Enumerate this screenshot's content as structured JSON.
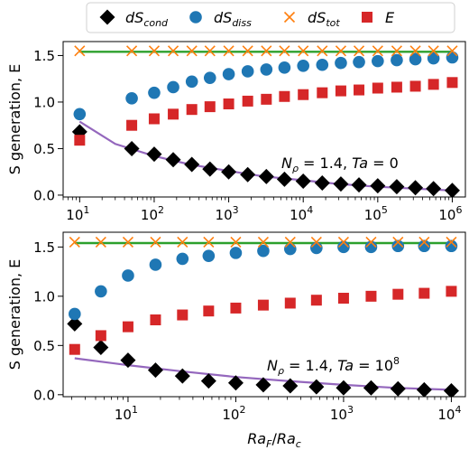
{
  "legend": {
    "entries": [
      {
        "id": "dScond",
        "base": "dS",
        "sub": "cond",
        "marker": "diamond",
        "color": "#000000"
      },
      {
        "id": "dSdiss",
        "base": "dS",
        "sub": "diss",
        "marker": "circle",
        "color": "#1f77b4"
      },
      {
        "id": "dStot",
        "base": "dS",
        "sub": "tot",
        "marker": "x",
        "color": "#ff7f0e"
      },
      {
        "id": "E",
        "base": "E",
        "sub": "",
        "marker": "square",
        "color": "#d62728"
      }
    ]
  },
  "colors": {
    "fit_line": "#9467bd",
    "total_line": "#2ca02c"
  },
  "xlabel": {
    "num": "Ra",
    "num_sub": "F",
    "den": "Ra",
    "den_sub": "c",
    "sep": "/"
  },
  "chart_data": [
    {
      "type": "scatter",
      "xscale": "log",
      "xlim": [
        6,
        1500000
      ],
      "ylim": [
        -0.02,
        1.65
      ],
      "xticks": [
        {
          "v": 10,
          "e": "1"
        },
        {
          "v": 100,
          "e": "2"
        },
        {
          "v": 1000,
          "e": "3"
        },
        {
          "v": 10000,
          "e": "4"
        },
        {
          "v": 100000,
          "e": "5"
        },
        {
          "v": 1000000,
          "e": "6"
        }
      ],
      "yticks": [
        0.0,
        0.5,
        1.0,
        1.5
      ],
      "ylabel": "S generation, E",
      "annotation": {
        "lhs": "N",
        "sub": "ρ",
        "text1": " = 1.4, ",
        "ta": "Ta",
        "text2": " = 0",
        "sup": ""
      },
      "x": [
        10,
        50,
        100,
        180,
        320,
        560,
        1000,
        1800,
        3200,
        5600,
        10000,
        18000,
        32000,
        56000,
        100000,
        180000,
        320000,
        560000,
        1000000
      ],
      "series": [
        {
          "id": "dScond",
          "values": [
            0.68,
            0.5,
            0.44,
            0.38,
            0.33,
            0.28,
            0.25,
            0.22,
            0.2,
            0.17,
            0.15,
            0.13,
            0.12,
            0.11,
            0.1,
            0.09,
            0.08,
            0.07,
            0.05
          ]
        },
        {
          "id": "dSdiss",
          "values": [
            0.87,
            1.04,
            1.1,
            1.16,
            1.22,
            1.26,
            1.3,
            1.33,
            1.35,
            1.37,
            1.39,
            1.4,
            1.42,
            1.43,
            1.44,
            1.45,
            1.46,
            1.47,
            1.48
          ]
        },
        {
          "id": "dStot",
          "values": [
            1.55,
            1.55,
            1.55,
            1.55,
            1.55,
            1.55,
            1.55,
            1.55,
            1.55,
            1.55,
            1.55,
            1.55,
            1.55,
            1.55,
            1.55,
            1.55,
            1.55,
            1.55,
            1.55
          ]
        },
        {
          "id": "E",
          "values": [
            0.59,
            0.75,
            0.82,
            0.87,
            0.92,
            0.95,
            0.98,
            1.01,
            1.03,
            1.06,
            1.08,
            1.1,
            1.12,
            1.13,
            1.15,
            1.16,
            1.17,
            1.19,
            1.21
          ]
        }
      ],
      "fit": {
        "x": [
          10,
          30,
          100,
          300,
          1000,
          3000,
          10000,
          30000,
          100000,
          300000,
          1000000
        ],
        "values": [
          0.79,
          0.55,
          0.42,
          0.33,
          0.26,
          0.2,
          0.16,
          0.12,
          0.09,
          0.07,
          0.05
        ]
      },
      "total_line": {
        "x": [
          10,
          1000000
        ],
        "values": [
          1.54,
          1.54
        ]
      }
    },
    {
      "type": "scatter",
      "xscale": "log",
      "xlim": [
        2.5,
        13500
      ],
      "ylim": [
        -0.02,
        1.65
      ],
      "xticks": [
        {
          "v": 10,
          "e": "1"
        },
        {
          "v": 100,
          "e": "2"
        },
        {
          "v": 1000,
          "e": "3"
        },
        {
          "v": 10000,
          "e": "4"
        }
      ],
      "yticks": [
        0.0,
        0.5,
        1.0,
        1.5
      ],
      "ylabel": "S generation, E",
      "annotation": {
        "lhs": "N",
        "sub": "ρ",
        "text1": " = 1.4, ",
        "ta": "Ta",
        "text2": " = 10",
        "sup": "8"
      },
      "x": [
        3.2,
        5.6,
        10,
        18,
        32,
        56,
        100,
        180,
        320,
        560,
        1000,
        1800,
        3200,
        5600,
        10000
      ],
      "series": [
        {
          "id": "dScond",
          "values": [
            0.72,
            0.48,
            0.35,
            0.25,
            0.19,
            0.14,
            0.12,
            0.1,
            0.09,
            0.08,
            0.07,
            0.07,
            0.06,
            0.05,
            0.04
          ]
        },
        {
          "id": "dSdiss",
          "values": [
            0.82,
            1.05,
            1.21,
            1.32,
            1.38,
            1.41,
            1.44,
            1.46,
            1.48,
            1.49,
            1.5,
            1.5,
            1.51,
            1.51,
            1.51
          ]
        },
        {
          "id": "dStot",
          "values": [
            1.55,
            1.55,
            1.55,
            1.55,
            1.55,
            1.55,
            1.55,
            1.55,
            1.55,
            1.55,
            1.55,
            1.55,
            1.55,
            1.55,
            1.55
          ]
        },
        {
          "id": "E",
          "values": [
            0.46,
            0.6,
            0.69,
            0.76,
            0.81,
            0.85,
            0.88,
            0.91,
            0.93,
            0.96,
            0.98,
            1.0,
            1.02,
            1.03,
            1.05
          ]
        }
      ],
      "fit": {
        "x": [
          3.2,
          10,
          30,
          100,
          300,
          1000,
          3000,
          10000
        ],
        "values": [
          0.37,
          0.3,
          0.24,
          0.18,
          0.14,
          0.1,
          0.07,
          0.05
        ]
      },
      "total_line": {
        "x": [
          3.2,
          10000
        ],
        "values": [
          1.54,
          1.54
        ]
      }
    }
  ]
}
